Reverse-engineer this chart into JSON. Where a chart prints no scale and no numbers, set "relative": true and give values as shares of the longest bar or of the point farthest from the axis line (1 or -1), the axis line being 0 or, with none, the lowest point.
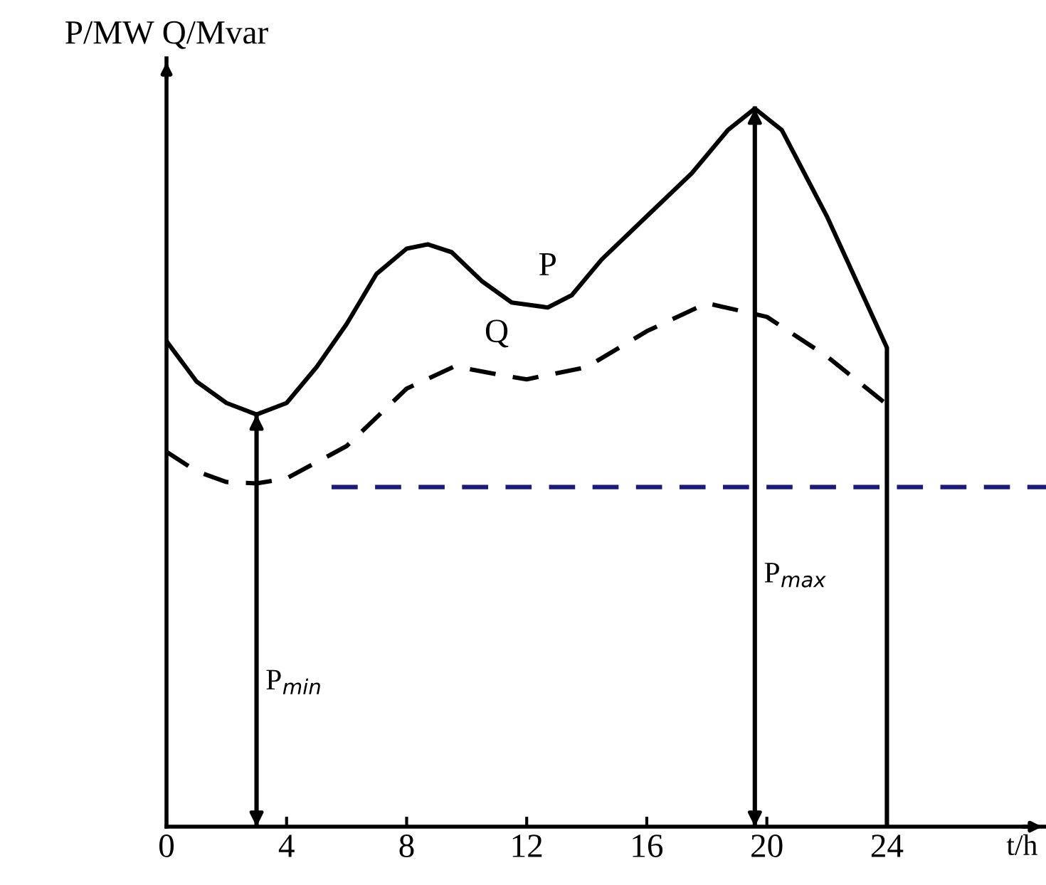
{
  "chart_data": {
    "type": "line",
    "relative": true,
    "xlabel": "t/h",
    "ylabel": "P/MW Q/Mvar",
    "xlim": [
      0,
      29.3
    ],
    "xticks": [
      0,
      4,
      8,
      12,
      16,
      20,
      24
    ],
    "series": [
      {
        "name": "P",
        "color": "#000000",
        "line_style": "solid",
        "x": [
          0,
          1,
          2,
          3,
          4,
          5,
          6,
          7,
          8,
          8.7,
          9.5,
          10.5,
          11.5,
          12.7,
          13.5,
          14.5,
          16,
          17.5,
          18.7,
          19.6,
          20.5,
          22,
          24,
          24
        ],
        "values": [
          0.676,
          0.62,
          0.59,
          0.574,
          0.59,
          0.64,
          0.7,
          0.77,
          0.805,
          0.811,
          0.8,
          0.76,
          0.73,
          0.723,
          0.74,
          0.79,
          0.85,
          0.91,
          0.97,
          1.0,
          0.97,
          0.85,
          0.667,
          0
        ]
      },
      {
        "name": "Q",
        "color": "#000000",
        "line_style": "dashed",
        "x": [
          0,
          1,
          2,
          3,
          4,
          6,
          8,
          9.6,
          11,
          12,
          14,
          16,
          18,
          20,
          22,
          24
        ],
        "values": [
          0.522,
          0.495,
          0.48,
          0.478,
          0.485,
          0.53,
          0.61,
          0.641,
          0.63,
          0.623,
          0.64,
          0.69,
          0.729,
          0.71,
          0.655,
          0.588
        ]
      },
      {
        "color": "#1a1a7a",
        "line_style": "dashed",
        "x": [
          5.5,
          29.3
        ],
        "values": [
          0.473,
          0.473
        ]
      },
      {
        "color": "#000000",
        "line_style": "solid",
        "x": [
          3,
          3
        ],
        "values": [
          0,
          0.574
        ]
      },
      {
        "color": "#000000",
        "line_style": "solid",
        "x": [
          19.6,
          19.6
        ],
        "values": [
          0,
          1.0
        ]
      }
    ],
    "annotations": [
      "P$_{min}$",
      "P$_{max}$"
    ],
    "grid": false,
    "legend": false,
    "marker": "none"
  }
}
